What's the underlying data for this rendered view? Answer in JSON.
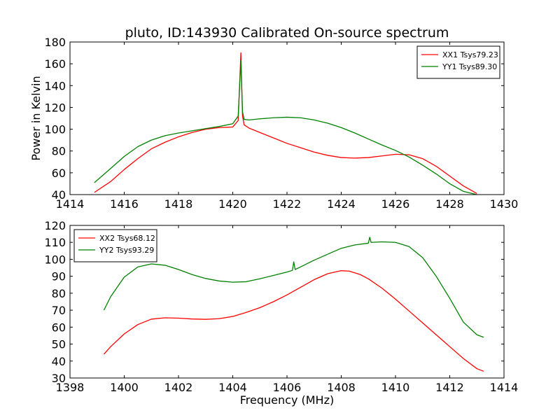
{
  "title": "pluto, ID:143930 Calibrated On-source spectrum",
  "colors": {
    "red": "#ff0000",
    "green": "#008000",
    "axes": "#000000",
    "background": "#ffffff"
  },
  "chart_data": [
    {
      "type": "line",
      "panel": "top",
      "title": "pluto, ID:143930 Calibrated On-source spectrum",
      "xlabel": "",
      "ylabel": "Power in Kelvin",
      "xlim": [
        1414,
        1430
      ],
      "ylim": [
        40,
        180
      ],
      "xticks": [
        1414,
        1416,
        1418,
        1420,
        1422,
        1424,
        1426,
        1428,
        1430
      ],
      "yticks": [
        40,
        60,
        80,
        100,
        120,
        140,
        160,
        180
      ],
      "grid": false,
      "legend_position": "top-right",
      "series": [
        {
          "name": "XX1 Tsys79.23",
          "color": "#ff0000",
          "x": [
            1414.9,
            1415.5,
            1416.0,
            1416.5,
            1417.0,
            1417.5,
            1418.0,
            1418.5,
            1419.0,
            1419.5,
            1420.0,
            1420.2,
            1420.3,
            1420.36,
            1420.42,
            1420.6,
            1421.0,
            1421.5,
            1422.0,
            1422.5,
            1423.0,
            1423.5,
            1424.0,
            1424.5,
            1425.0,
            1425.5,
            1426.0,
            1426.5,
            1427.0,
            1427.5,
            1428.0,
            1428.5,
            1429.0
          ],
          "y": [
            42,
            52,
            63,
            73,
            82,
            88,
            93,
            97,
            100,
            101.5,
            102,
            108,
            170,
            112,
            104,
            101,
            97,
            92,
            87,
            83,
            79,
            76,
            74,
            73.5,
            74,
            75.5,
            77,
            76.5,
            73,
            66,
            57,
            48,
            41
          ]
        },
        {
          "name": "YY1 Tsys89.30",
          "color": "#008000",
          "x": [
            1414.9,
            1415.5,
            1416.0,
            1416.5,
            1417.0,
            1417.5,
            1418.0,
            1418.5,
            1419.0,
            1419.5,
            1420.0,
            1420.2,
            1420.3,
            1420.36,
            1420.42,
            1420.6,
            1421.0,
            1421.5,
            1422.0,
            1422.5,
            1423.0,
            1423.5,
            1424.0,
            1424.5,
            1425.0,
            1425.5,
            1426.0,
            1426.5,
            1427.0,
            1427.5,
            1428.0,
            1428.5,
            1429.0
          ],
          "y": [
            51,
            64,
            75,
            84,
            90,
            94,
            96.5,
            98.5,
            100.5,
            102.5,
            105,
            112,
            163,
            116,
            109,
            108.5,
            109.5,
            110.5,
            111,
            110.5,
            108.5,
            105.5,
            101.5,
            96.5,
            91,
            85.5,
            80.5,
            74.5,
            67,
            59,
            50,
            43,
            40
          ]
        }
      ]
    },
    {
      "type": "line",
      "panel": "bottom",
      "title": "",
      "xlabel": "Frequency (MHz)",
      "ylabel": "",
      "xlim": [
        1398,
        1414
      ],
      "ylim": [
        30,
        120
      ],
      "xticks": [
        1398,
        1400,
        1402,
        1404,
        1406,
        1408,
        1410,
        1412,
        1414
      ],
      "yticks": [
        30,
        40,
        50,
        60,
        70,
        80,
        90,
        100,
        110,
        120
      ],
      "grid": false,
      "legend_position": "top-left",
      "series": [
        {
          "name": "XX2 Tsys68.12",
          "color": "#ff0000",
          "x": [
            1399.25,
            1399.5,
            1400.0,
            1400.5,
            1401.0,
            1401.5,
            1402.0,
            1402.5,
            1403.0,
            1403.5,
            1404.0,
            1404.5,
            1405.0,
            1405.5,
            1406.0,
            1406.5,
            1407.0,
            1407.5,
            1408.0,
            1408.3,
            1408.7,
            1409.0,
            1409.5,
            1410.0,
            1410.5,
            1411.0,
            1411.5,
            1412.0,
            1412.5,
            1413.0,
            1413.25
          ],
          "y": [
            44,
            48.5,
            56,
            61.5,
            64.7,
            65.5,
            65.3,
            64.8,
            64.6,
            65,
            66.3,
            68.7,
            71.5,
            75,
            79,
            83.5,
            88,
            91.5,
            93.3,
            93,
            91,
            88.5,
            83,
            76.5,
            69.5,
            62.5,
            55.5,
            48.5,
            41.5,
            35.5,
            34
          ]
        },
        {
          "name": "YY2 Tsys93.29",
          "color": "#008000",
          "x": [
            1399.25,
            1399.5,
            1400.0,
            1400.5,
            1401.0,
            1401.5,
            1402.0,
            1402.5,
            1403.0,
            1403.5,
            1404.0,
            1404.5,
            1405.0,
            1405.5,
            1406.0,
            1406.2,
            1406.25,
            1406.3,
            1406.5,
            1407.0,
            1407.5,
            1408.0,
            1408.5,
            1409.0,
            1409.05,
            1409.1,
            1409.5,
            1410.0,
            1410.5,
            1411.0,
            1411.5,
            1412.0,
            1412.5,
            1413.0,
            1413.25
          ],
          "y": [
            70,
            78,
            89.5,
            95.5,
            97.3,
            96.5,
            94,
            91,
            88.7,
            87.2,
            86.5,
            86.8,
            88.5,
            90.5,
            92.5,
            93.5,
            98.5,
            94,
            95.5,
            99.5,
            103,
            106.5,
            108.5,
            109.5,
            113,
            110,
            110.3,
            110,
            107.5,
            101,
            90,
            77,
            63,
            55.5,
            54
          ]
        }
      ]
    }
  ]
}
